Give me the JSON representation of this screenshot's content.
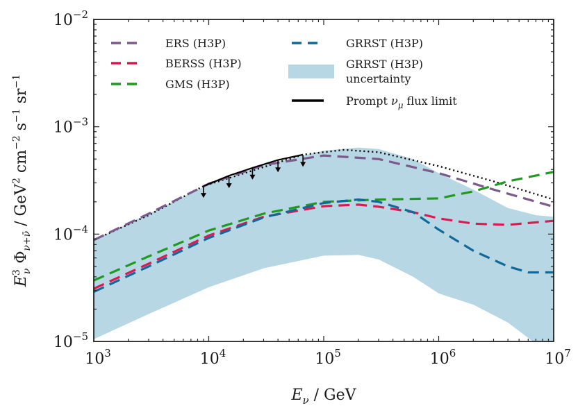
{
  "chart_data": {
    "type": "line",
    "title": "",
    "xlabel": "E_ν / GeV",
    "ylabel": "E_ν^3 Φ_{ν+ν̄} / GeV^2 cm^-2 s^-1 sr^-1",
    "xscale": "log",
    "yscale": "log",
    "xlim": [
      1000,
      10000000
    ],
    "ylim": [
      1e-05,
      0.01
    ],
    "x_tick_labels": [
      {
        "value": 1000,
        "base": "10",
        "exp": "3"
      },
      {
        "value": 10000,
        "base": "10",
        "exp": "4"
      },
      {
        "value": 100000,
        "base": "10",
        "exp": "5"
      },
      {
        "value": 1000000,
        "base": "10",
        "exp": "6"
      },
      {
        "value": 10000000,
        "base": "10",
        "exp": "7"
      }
    ],
    "y_tick_labels": [
      {
        "value": 1e-05,
        "base": "10",
        "exp": "−5"
      },
      {
        "value": 0.0001,
        "base": "10",
        "exp": "−4"
      },
      {
        "value": 0.001,
        "base": "10",
        "exp": "−3"
      },
      {
        "value": 0.01,
        "base": "10",
        "exp": "−2"
      }
    ],
    "legend_position": "top",
    "series": [
      {
        "name": "ERS (H3P)",
        "color": "#7b5a8c",
        "style": "dashed",
        "x": [
          1000,
          3000,
          10000,
          30000,
          100000,
          300000,
          1000000,
          3000000,
          10000000
        ],
        "y": [
          8.8e-05,
          0.000155,
          0.000295,
          0.00044,
          0.00054,
          0.0005,
          0.00037,
          0.00026,
          0.00018
        ]
      },
      {
        "name": "BERSS (H3P)",
        "color": "#d81b50",
        "style": "dashed",
        "x": [
          1000,
          3000,
          10000,
          30000,
          100000,
          200000,
          300000,
          600000,
          1000000,
          2000000,
          4000000,
          10000000
        ],
        "y": [
          3.1e-05,
          5.3e-05,
          9.7e-05,
          0.000145,
          0.000182,
          0.000188,
          0.00018,
          0.00016,
          0.00014,
          0.000125,
          0.000122,
          0.000133
        ]
      },
      {
        "name": "GMS (H3P)",
        "color": "#1f9a1f",
        "style": "dashed",
        "x": [
          1000,
          3000,
          10000,
          30000,
          100000,
          300000,
          1000000,
          2000000,
          4000000,
          10000000
        ],
        "y": [
          3.7e-05,
          6.2e-05,
          0.000108,
          0.000155,
          0.0002,
          0.00021,
          0.000215,
          0.00025,
          0.00031,
          0.00038
        ]
      },
      {
        "name": "GRRST (H3P)",
        "color": "#11699a",
        "style": "dashed",
        "x": [
          1000,
          3000,
          10000,
          30000,
          100000,
          200000,
          300000,
          600000,
          1000000,
          2000000,
          4000000,
          6000000,
          10000000
        ],
        "y": [
          2.9e-05,
          5e-05,
          9.2e-05,
          0.000143,
          0.000195,
          0.00021,
          0.0002,
          0.00016,
          0.00011,
          7e-05,
          5e-05,
          4.4e-05,
          4.4e-05
        ]
      },
      {
        "name": "Prompt ν_μ flux limit",
        "color": "#000000",
        "style": "solid",
        "x": [
          9000,
          15000,
          25000,
          40000,
          66000
        ],
        "y": [
          0.00028,
          0.00035,
          0.00042,
          0.00049,
          0.00055
        ]
      }
    ],
    "extrapolation": {
      "name": "prompt limit extrapolation",
      "color": "#000000",
      "style": "dotted",
      "x": [
        1000,
        3000,
        9000,
        66000,
        150000,
        300000,
        1000000,
        3000000,
        10000000
      ],
      "y": [
        8.8e-05,
        0.00015,
        0.00028,
        0.00055,
        0.00061,
        0.00058,
        0.00043,
        0.00031,
        0.00021
      ]
    },
    "band": {
      "name": "GRRST (H3P) uncertainty",
      "color": "#b8d7e4",
      "x": [
        1000,
        3000,
        10000,
        30000,
        100000,
        200000,
        300000,
        600000,
        1000000,
        2000000,
        4000000,
        7000000,
        10000000
      ],
      "lower": [
        1.05e-05,
        1.8e-05,
        3.2e-05,
        4.8e-05,
        6.3e-05,
        6.4e-05,
        5.8e-05,
        4e-05,
        2.8e-05,
        2.2e-05,
        1.5e-05,
        9.5e-06,
        9.5e-06
      ],
      "upper": [
        8.8e-05,
        0.000155,
        0.00029,
        0.00044,
        0.0006,
        0.00064,
        0.00062,
        0.0005,
        0.00037,
        0.00026,
        0.000175,
        0.00015,
        0.000145
      ]
    },
    "upper_limit_arrows": {
      "x": [
        9000,
        15000,
        24000,
        40000,
        66000
      ],
      "y": [
        0.00028,
        0.000345,
        0.000415,
        0.000485,
        0.000545
      ]
    },
    "legend": {
      "col1": [
        {
          "label": "ERS (H3P)",
          "series": "ERS (H3P)"
        },
        {
          "label": "BERSS (H3P)",
          "series": "BERSS (H3P)"
        },
        {
          "label": "GMS (H3P)",
          "series": "GMS (H3P)"
        }
      ],
      "col2": [
        {
          "label": "GRRST (H3P)",
          "series": "GRRST (H3P)"
        },
        {
          "label_line1": "GRRST (H3P)",
          "label_line2": "uncertainty",
          "series": "band"
        },
        {
          "label_pre": "Prompt ",
          "label_sym": "ν",
          "label_sub": "μ",
          "label_post": " flux limit",
          "series": "Prompt ν_μ flux limit"
        }
      ]
    }
  }
}
